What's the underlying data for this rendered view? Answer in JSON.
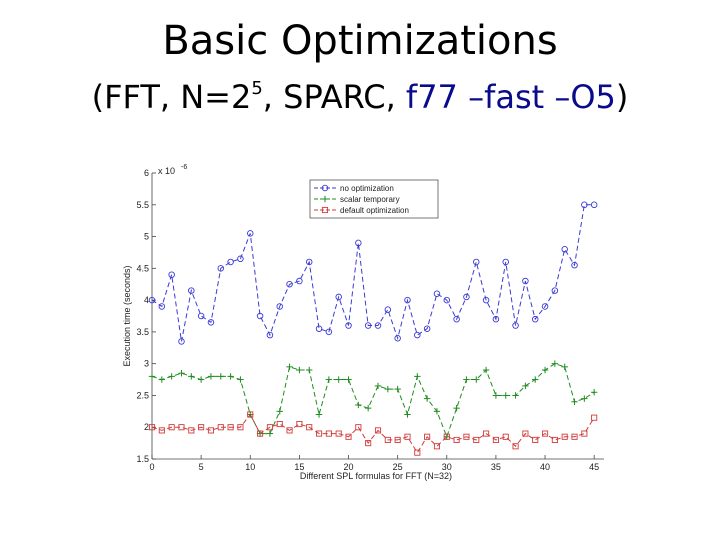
{
  "slide": {
    "title": "Basic Optimizations",
    "subtitle_prefix": "(FFT, N=2",
    "subtitle_exp": "5",
    "subtitle_mid": ", SPARC, ",
    "subtitle_flags": "f77 –fast –O5",
    "subtitle_suffix": ")"
  },
  "chart_data": {
    "type": "line",
    "xlabel": "Different SPL formulas for FFT (N=32)",
    "ylabel": "Execution time (seconds)",
    "y_exponent_label": "x 10",
    "y_exponent": "-6",
    "xlim": [
      0,
      46
    ],
    "ylim": [
      1.5,
      6
    ],
    "xticks": [
      0,
      5,
      10,
      15,
      20,
      25,
      30,
      35,
      40,
      45
    ],
    "yticks": [
      1.5,
      2,
      2.5,
      3,
      3.5,
      4,
      4.5,
      5,
      5.5,
      6
    ],
    "ytick_labels": [
      "1.5",
      "2",
      "2.5",
      "3",
      "3.5",
      "4",
      "4.5",
      "5",
      "5.5",
      "6"
    ],
    "legend_position": "top-right",
    "grid": false,
    "x": [
      0,
      1,
      2,
      3,
      4,
      5,
      6,
      7,
      8,
      9,
      10,
      11,
      12,
      13,
      14,
      15,
      16,
      17,
      18,
      19,
      20,
      21,
      22,
      23,
      24,
      25,
      26,
      27,
      28,
      29,
      30,
      31,
      32,
      33,
      34,
      35,
      36,
      37,
      38,
      39,
      40,
      41,
      42,
      43,
      44,
      45
    ],
    "series": [
      {
        "name": "no optimization",
        "color": "#3a3ad6",
        "marker": "circle",
        "values": [
          4.0,
          3.9,
          4.4,
          3.35,
          4.15,
          3.75,
          3.65,
          4.5,
          4.6,
          4.65,
          5.05,
          3.75,
          3.45,
          3.9,
          4.25,
          4.3,
          4.6,
          3.55,
          3.5,
          4.05,
          3.6,
          4.9,
          3.6,
          3.6,
          3.85,
          3.4,
          4.0,
          3.45,
          3.55,
          4.1,
          4.0,
          3.7,
          4.05,
          4.6,
          4.0,
          3.7,
          4.6,
          3.6,
          4.3,
          3.7,
          3.9,
          4.15,
          4.8,
          4.55,
          5.5,
          5.5
        ]
      },
      {
        "name": "scalar temporary",
        "color": "#1f8c1f",
        "marker": "plus",
        "values": [
          2.8,
          2.75,
          2.8,
          2.85,
          2.8,
          2.75,
          2.8,
          2.8,
          2.8,
          2.75,
          2.2,
          1.9,
          1.9,
          2.25,
          2.95,
          2.9,
          2.9,
          2.2,
          2.75,
          2.75,
          2.75,
          2.35,
          2.3,
          2.65,
          2.6,
          2.6,
          2.2,
          2.8,
          2.45,
          2.25,
          1.85,
          2.3,
          2.75,
          2.75,
          2.9,
          2.5,
          2.5,
          2.5,
          2.65,
          2.75,
          2.9,
          3.0,
          2.95,
          2.4,
          2.45,
          2.55
        ]
      },
      {
        "name": "default optimization",
        "color": "#d23a3a",
        "marker": "square",
        "values": [
          2.0,
          1.95,
          2.0,
          2.0,
          1.95,
          2.0,
          1.95,
          2.0,
          2.0,
          2.0,
          2.2,
          1.9,
          2.0,
          2.05,
          1.95,
          2.05,
          2.0,
          1.9,
          1.9,
          1.9,
          1.85,
          2.0,
          1.75,
          1.95,
          1.8,
          1.8,
          1.85,
          1.6,
          1.85,
          1.7,
          1.85,
          1.8,
          1.85,
          1.8,
          1.9,
          1.8,
          1.85,
          1.7,
          1.9,
          1.8,
          1.9,
          1.8,
          1.85,
          1.85,
          1.9,
          2.15
        ]
      }
    ]
  }
}
